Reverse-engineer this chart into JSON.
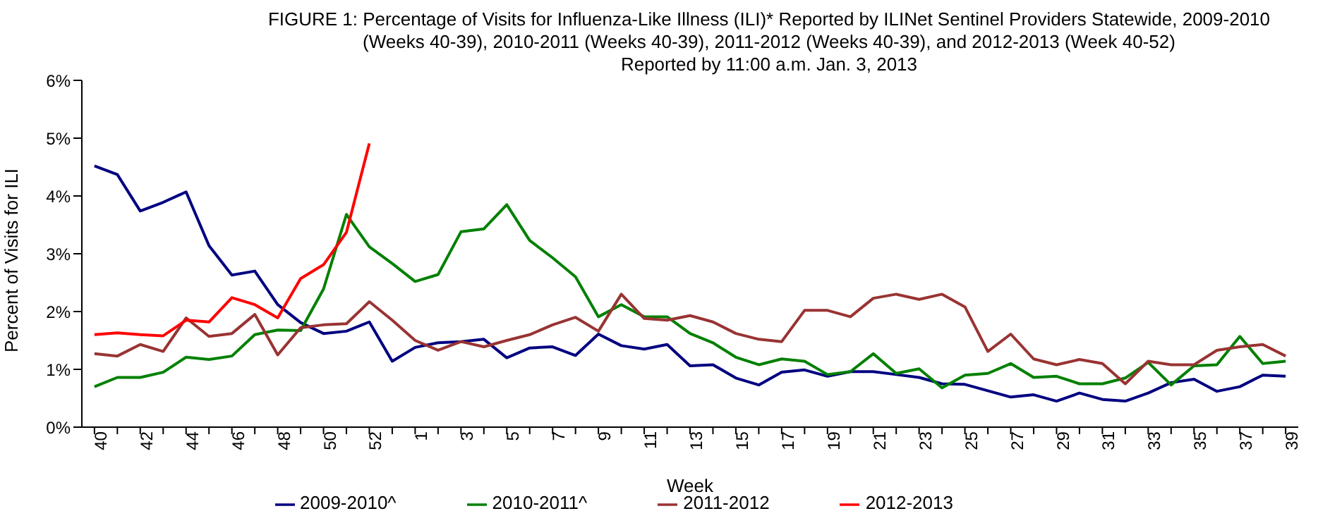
{
  "chart_data": {
    "type": "line",
    "title": "FIGURE 1: Percentage of Visits for Influenza-Like Illness (ILI)* Reported by ILINet Sentinel Providers Statewide, 2009-2010 (Weeks 40-39), 2010-2011 (Weeks 40-39), 2011-2012 (Weeks 40-39), and 2012-2013 (Week 40-52)",
    "subtitle": "Reported by 11:00 a.m. Jan. 3, 2013",
    "xlabel": "Week",
    "ylabel": "Percent of Visits for ILI",
    "categories": [
      "40",
      null,
      "42",
      null,
      "44",
      null,
      "46",
      null,
      "48",
      null,
      "50",
      null,
      "52",
      null,
      "1",
      null,
      "3",
      null,
      "5",
      null,
      "7",
      null,
      "9",
      null,
      "11",
      null,
      "13",
      null,
      "15",
      null,
      "17",
      null,
      "19",
      null,
      "21",
      null,
      "23",
      null,
      "25",
      null,
      "27",
      null,
      "29",
      null,
      "31",
      null,
      "33",
      null,
      "35",
      null,
      "37",
      null,
      "39"
    ],
    "series": [
      {
        "name": "2009-2010^",
        "color": "#000080",
        "values": [
          4.52,
          4.37,
          3.74,
          3.89,
          4.07,
          3.14,
          2.63,
          2.7,
          2.12,
          1.81,
          1.62,
          1.66,
          1.82,
          1.14,
          1.38,
          1.46,
          1.48,
          1.52,
          1.2,
          1.37,
          1.39,
          1.24,
          1.61,
          1.41,
          1.35,
          1.43,
          1.06,
          1.08,
          0.85,
          0.73,
          0.95,
          0.99,
          0.88,
          0.96,
          0.96,
          0.91,
          0.86,
          0.75,
          0.74,
          0.63,
          0.52,
          0.56,
          0.45,
          0.59,
          0.48,
          0.45,
          0.59,
          0.77,
          0.83,
          0.62,
          0.7,
          0.9,
          0.88
        ]
      },
      {
        "name": "2010-2011^",
        "color": "#008000",
        "values": [
          0.7,
          0.86,
          0.86,
          0.95,
          1.21,
          1.17,
          1.23,
          1.6,
          1.68,
          1.67,
          2.39,
          3.68,
          3.12,
          2.83,
          2.52,
          2.64,
          3.38,
          3.43,
          3.85,
          3.23,
          2.93,
          2.6,
          1.91,
          2.12,
          1.91,
          1.91,
          1.62,
          1.46,
          1.21,
          1.08,
          1.18,
          1.14,
          0.91,
          0.96,
          1.27,
          0.93,
          1.01,
          0.68,
          0.9,
          0.93,
          1.1,
          0.86,
          0.88,
          0.75,
          0.75,
          0.85,
          1.12,
          0.73,
          1.06,
          1.08,
          1.57,
          1.1,
          1.14
        ]
      },
      {
        "name": "2011-2012",
        "color": "#993333",
        "values": [
          1.27,
          1.23,
          1.43,
          1.31,
          1.89,
          1.57,
          1.62,
          1.95,
          1.25,
          1.72,
          1.77,
          1.79,
          2.17,
          1.85,
          1.5,
          1.33,
          1.48,
          1.39,
          1.5,
          1.6,
          1.77,
          1.9,
          1.66,
          2.3,
          1.88,
          1.85,
          1.93,
          1.82,
          1.62,
          1.52,
          1.48,
          2.02,
          2.02,
          1.91,
          2.23,
          2.3,
          2.21,
          2.3,
          2.08,
          1.31,
          1.61,
          1.18,
          1.08,
          1.17,
          1.1,
          0.75,
          1.14,
          1.08,
          1.08,
          1.33,
          1.39,
          1.43,
          1.23
        ]
      },
      {
        "name": "2012-2013",
        "color": "#ff0000",
        "values": [
          1.6,
          1.63,
          1.6,
          1.58,
          1.85,
          1.82,
          2.24,
          2.12,
          1.89,
          2.57,
          2.81,
          3.37,
          4.91,
          null,
          null,
          null,
          null,
          null,
          null,
          null,
          null,
          null,
          null,
          null,
          null,
          null,
          null,
          null,
          null,
          null,
          null,
          null,
          null,
          null,
          null,
          null,
          null,
          null,
          null,
          null,
          null,
          null,
          null,
          null,
          null,
          null,
          null,
          null,
          null,
          null,
          null,
          null,
          null
        ]
      }
    ],
    "ylim": [
      0,
      6
    ],
    "yticks": [
      {
        "value": 0,
        "label": "0%"
      },
      {
        "value": 1,
        "label": "1%"
      },
      {
        "value": 2,
        "label": "2%"
      },
      {
        "value": 3,
        "label": "3%"
      },
      {
        "value": 4,
        "label": "4%"
      },
      {
        "value": 5,
        "label": "5%"
      },
      {
        "value": 6,
        "label": "6%"
      }
    ],
    "legend": "bottom",
    "marker": "none",
    "line_style": "solid"
  }
}
